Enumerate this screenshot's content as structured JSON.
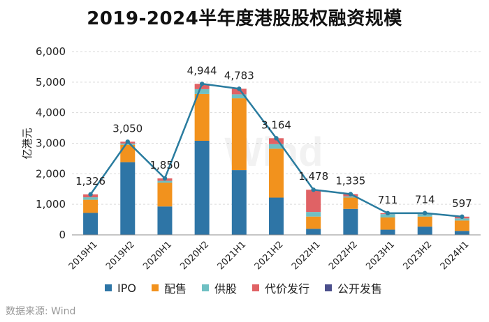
{
  "chart_data": {
    "type": "bar",
    "title": "2019-2024半年度港股股权融资规模",
    "ylabel": "亿港元",
    "xlabel": "",
    "ylim": [
      0,
      6000
    ],
    "y_ticks": [
      "0",
      "1,000",
      "2,000",
      "3,000",
      "4,000",
      "5,000",
      "6,000"
    ],
    "categories": [
      "2019H1",
      "2019H2",
      "2020H1",
      "2020H2",
      "2021H1",
      "2021H2",
      "2022H1",
      "2022H2",
      "2023H1",
      "2023H2",
      "2024H1"
    ],
    "stacked": true,
    "series": [
      {
        "name": "IPO",
        "color": "#2e75a6",
        "values": [
          720,
          2380,
          930,
          3080,
          2120,
          1220,
          200,
          850,
          170,
          270,
          130
        ]
      },
      {
        "name": "配售",
        "color": "#f2921d",
        "values": [
          430,
          570,
          780,
          1530,
          2350,
          1600,
          400,
          370,
          400,
          330,
          340
        ]
      },
      {
        "name": "供股",
        "color": "#6fc0c3",
        "values": [
          80,
          40,
          60,
          160,
          130,
          150,
          150,
          40,
          110,
          80,
          70
        ]
      },
      {
        "name": "代价发行",
        "color": "#e06265",
        "values": [
          96,
          60,
          80,
          174,
          183,
          194,
          728,
          75,
          31,
          34,
          57
        ]
      },
      {
        "name": "公开发售",
        "color": "#4b4f8c",
        "values": [
          0,
          0,
          0,
          0,
          0,
          0,
          0,
          0,
          0,
          0,
          0
        ]
      }
    ],
    "totals": [
      1326,
      3050,
      1850,
      4944,
      4783,
      3164,
      1478,
      1335,
      711,
      714,
      597
    ],
    "total_labels": [
      "1,326",
      "3,050",
      "1,850",
      "4,944",
      "4,783",
      "3,164",
      "1,478",
      "1,335",
      "711",
      "714",
      "597"
    ],
    "line_color": "#2a7c9f",
    "watermark": "Wind"
  },
  "source": "数据来源: Wind"
}
